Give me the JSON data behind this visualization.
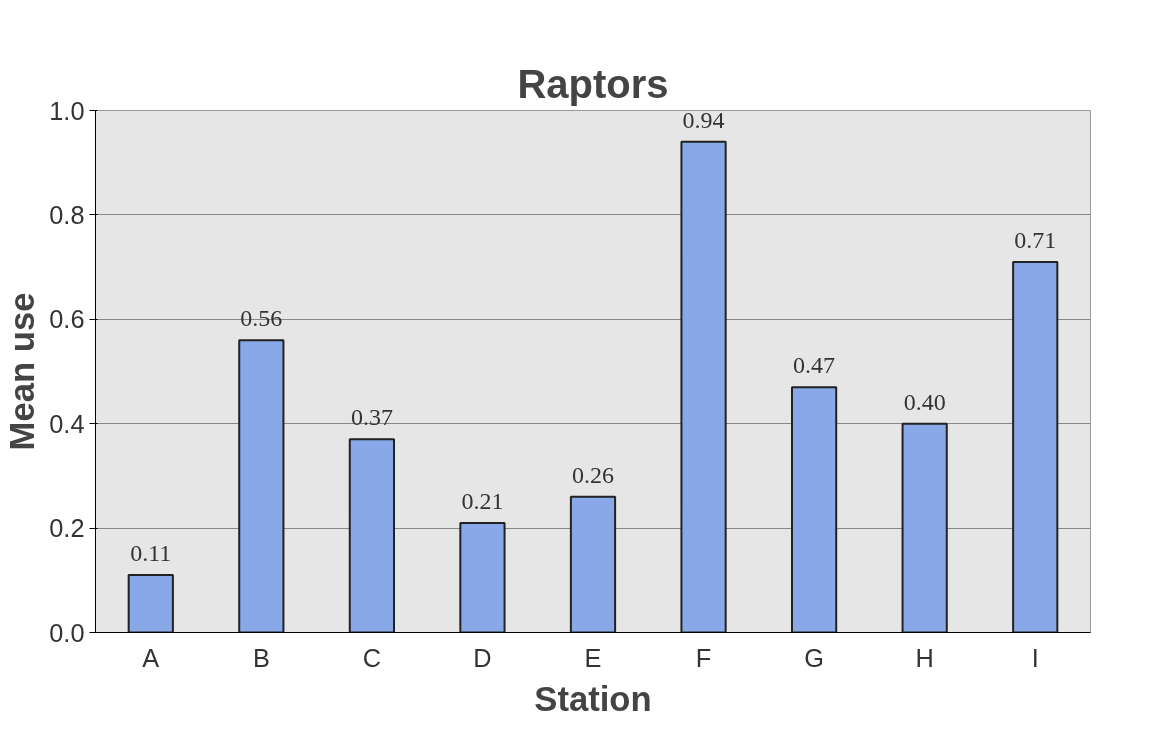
{
  "chart_data": {
    "type": "bar",
    "title": "Raptors",
    "xlabel": "Station",
    "ylabel": "Mean use",
    "categories": [
      "A",
      "B",
      "C",
      "D",
      "E",
      "F",
      "G",
      "H",
      "I"
    ],
    "values": [
      0.11,
      0.56,
      0.37,
      0.21,
      0.26,
      0.94,
      0.47,
      0.4,
      0.71
    ],
    "value_labels": [
      "0.11",
      "0.56",
      "0.37",
      "0.21",
      "0.26",
      "0.94",
      "0.47",
      "0.40",
      "0.71"
    ],
    "color": "#88a8e8",
    "ylim": [
      0,
      1.0
    ],
    "yticks": [
      {
        "value": 0,
        "label": "0.0"
      },
      {
        "value": 0.2,
        "label": "0.2"
      },
      {
        "value": 0.4,
        "label": "0.4"
      },
      {
        "value": 0.6,
        "label": "0.6"
      },
      {
        "value": 0.8,
        "label": "0.8"
      },
      {
        "value": 1.0,
        "label": "1.0"
      }
    ],
    "grid": "y"
  }
}
